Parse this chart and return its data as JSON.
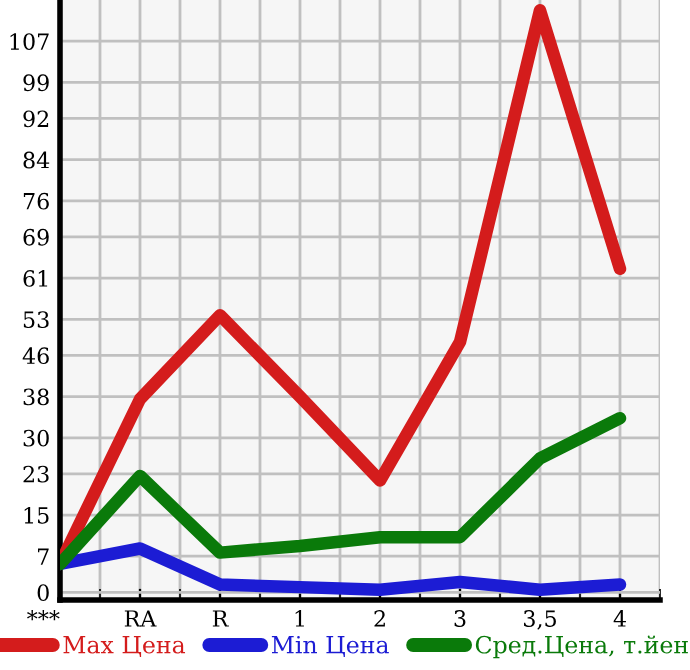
{
  "chart_data": {
    "type": "line",
    "categories": [
      "***",
      "RA",
      "R",
      "1",
      "2",
      "3",
      "3,5",
      "4"
    ],
    "series": [
      {
        "name": "Max Цена",
        "color": "#d41c1c",
        "values": [
          5.5,
          37.5,
          53.8,
          38,
          21.7,
          48.6,
          113,
          62.8
        ]
      },
      {
        "name": "Min Цена",
        "color": "#1c1cd4",
        "values": [
          5.5,
          8.5,
          1.5,
          1,
          0.5,
          2,
          0.5,
          1.5
        ]
      },
      {
        "name": "Сред.Цена, т.йен",
        "color": "#0a7a0a",
        "values": [
          5.5,
          22.6,
          7.7,
          9,
          10.7,
          10.7,
          26,
          33.8
        ]
      }
    ],
    "ylim": [
      -1.5,
      115
    ],
    "yticks": [
      0,
      7,
      15,
      23,
      30,
      38,
      46,
      53,
      61,
      69,
      76,
      84,
      92,
      99,
      107
    ],
    "grid": true,
    "legend": "bottom",
    "marker": "none",
    "line_style": "solid"
  }
}
